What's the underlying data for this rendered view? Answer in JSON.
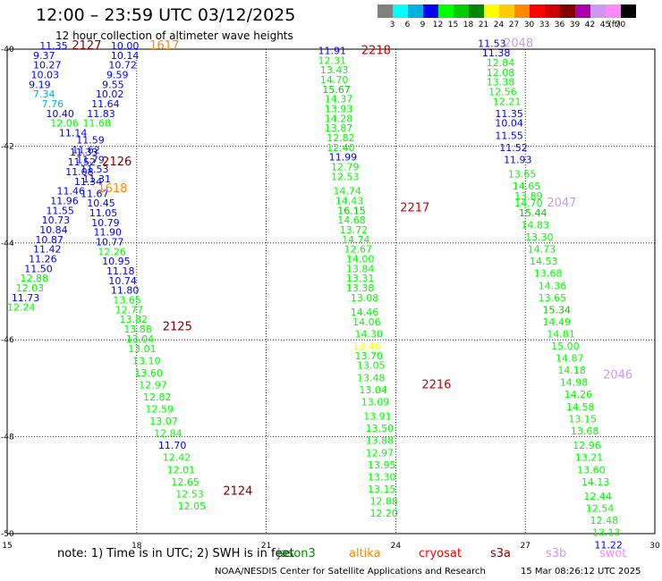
{
  "header": {
    "title": "12:00 – 23:59 UTC 03/12/2025",
    "subtitle": "12 hour collection of altimeter wave heights"
  },
  "scale": {
    "unit": "(ft)",
    "bins": [
      {
        "label": "3",
        "color": "#808080"
      },
      {
        "label": "6",
        "color": "#00ffff"
      },
      {
        "label": "9",
        "color": "#00b0e0"
      },
      {
        "label": "12",
        "color": "#0000ff"
      },
      {
        "label": "15",
        "color": "#00ff00"
      },
      {
        "label": "18",
        "color": "#00cc00"
      },
      {
        "label": "21",
        "color": "#008800"
      },
      {
        "label": "24",
        "color": "#ffff00"
      },
      {
        "label": "27",
        "color": "#ffcc00"
      },
      {
        "label": "30",
        "color": "#ff8800"
      },
      {
        "label": "33",
        "color": "#ff0000"
      },
      {
        "label": "36",
        "color": "#cc0000"
      },
      {
        "label": "39",
        "color": "#800000"
      },
      {
        "label": "42",
        "color": "#aa00aa"
      },
      {
        "label": "45",
        "color": "#cc99ee"
      },
      {
        "label": "70",
        "color": "#ff88ff"
      },
      {
        "label": "",
        "color": "#000000"
      }
    ]
  },
  "chart_data": {
    "type": "scatter",
    "title": "12:00 – 23:59 UTC 03/12/2025",
    "subtitle": "12 hour collection of altimeter wave heights",
    "xlim": [
      15,
      30
    ],
    "ylim": [
      -50,
      -40
    ],
    "xticks": [
      "15",
      "18",
      "21",
      "24",
      "27",
      "30"
    ],
    "yticks": [
      "-40",
      "-42",
      "-44",
      "-46",
      "-48",
      "-50"
    ],
    "grid": true,
    "tracks": [
      {
        "label": "2127",
        "x": 16.5,
        "y": -40.0,
        "color": "#800000"
      },
      {
        "label": "1617",
        "x": 18.3,
        "y": -40.0,
        "color": "#ff8800"
      },
      {
        "label": "2218",
        "x": 23.2,
        "y": -40.1,
        "color": "#cc0000"
      },
      {
        "label": "2048",
        "x": 26.5,
        "y": -39.95,
        "color": "#cc99ee"
      },
      {
        "label": "2126",
        "x": 17.2,
        "y": -42.4,
        "color": "#800000"
      },
      {
        "label": "1618",
        "x": 17.1,
        "y": -42.95,
        "color": "#ff8800"
      },
      {
        "label": "2217",
        "x": 24.1,
        "y": -43.35,
        "color": "#cc0000"
      },
      {
        "label": "2047",
        "x": 27.5,
        "y": -43.25,
        "color": "#cc99ee"
      },
      {
        "label": "2125",
        "x": 18.6,
        "y": -45.8,
        "color": "#800000"
      },
      {
        "label": "2216",
        "x": 24.6,
        "y": -47.0,
        "color": "#cc0000"
      },
      {
        "label": "2046",
        "x": 28.8,
        "y": -46.8,
        "color": "#cc99ee"
      },
      {
        "label": "2124",
        "x": 20.0,
        "y": -49.2,
        "color": "#800000"
      }
    ],
    "observations": [
      {
        "x": 15.75,
        "y": -40.0,
        "v": "11.35",
        "c": "#0000ff"
      },
      {
        "x": 15.6,
        "y": -40.2,
        "v": "9.37",
        "c": "#0000ff"
      },
      {
        "x": 15.6,
        "y": -40.4,
        "v": "10.27",
        "c": "#0000ff"
      },
      {
        "x": 15.55,
        "y": -40.6,
        "v": "10.03",
        "c": "#0000ff"
      },
      {
        "x": 15.5,
        "y": -40.8,
        "v": "9.19",
        "c": "#0000ff"
      },
      {
        "x": 15.6,
        "y": -41.0,
        "v": "7.34",
        "c": "#00b0e0"
      },
      {
        "x": 15.8,
        "y": -41.2,
        "v": "7.76",
        "c": "#00b0e0"
      },
      {
        "x": 15.9,
        "y": -41.4,
        "v": "10.40",
        "c": "#0000ff"
      },
      {
        "x": 16.0,
        "y": -41.6,
        "v": "12.06",
        "c": "#00ff00"
      },
      {
        "x": 16.2,
        "y": -41.8,
        "v": "11.14",
        "c": "#0000ff"
      },
      {
        "x": 16.45,
        "y": -42.2,
        "v": "11.33",
        "c": "#0000ff"
      },
      {
        "x": 16.4,
        "y": -42.4,
        "v": "11.52",
        "c": "#0000ff"
      },
      {
        "x": 16.35,
        "y": -42.6,
        "v": "11.08",
        "c": "#0000ff"
      },
      {
        "x": 16.55,
        "y": -42.8,
        "v": "11.34",
        "c": "#0000ff"
      },
      {
        "x": 16.15,
        "y": -43.0,
        "v": "11.46",
        "c": "#0000ff"
      },
      {
        "x": 16.0,
        "y": -43.2,
        "v": "11.96",
        "c": "#0000ff"
      },
      {
        "x": 15.9,
        "y": -43.4,
        "v": "11.55",
        "c": "#0000ff"
      },
      {
        "x": 15.8,
        "y": -43.6,
        "v": "10.73",
        "c": "#0000ff"
      },
      {
        "x": 15.75,
        "y": -43.8,
        "v": "10.84",
        "c": "#0000ff"
      },
      {
        "x": 15.65,
        "y": -44.0,
        "v": "10.87",
        "c": "#0000ff"
      },
      {
        "x": 15.6,
        "y": -44.2,
        "v": "11.42",
        "c": "#0000ff"
      },
      {
        "x": 15.5,
        "y": -44.4,
        "v": "11.26",
        "c": "#0000ff"
      },
      {
        "x": 15.4,
        "y": -44.6,
        "v": "11.50",
        "c": "#0000ff"
      },
      {
        "x": 15.3,
        "y": -44.8,
        "v": "12.88",
        "c": "#00ff00"
      },
      {
        "x": 15.2,
        "y": -45.0,
        "v": "12.03",
        "c": "#00ff00"
      },
      {
        "x": 15.1,
        "y": -45.2,
        "v": "11.73",
        "c": "#0000ff"
      },
      {
        "x": 15.0,
        "y": -45.4,
        "v": "12.24",
        "c": "#00ff00"
      },
      {
        "x": 17.4,
        "y": -40.0,
        "v": "10.00",
        "c": "#0000ff"
      },
      {
        "x": 17.4,
        "y": -40.2,
        "v": "10.14",
        "c": "#0000ff"
      },
      {
        "x": 17.35,
        "y": -40.4,
        "v": "10.72",
        "c": "#0000ff"
      },
      {
        "x": 17.3,
        "y": -40.6,
        "v": "9.59",
        "c": "#0000ff"
      },
      {
        "x": 17.2,
        "y": -40.8,
        "v": "9.55",
        "c": "#0000ff"
      },
      {
        "x": 17.05,
        "y": -41.0,
        "v": "10.02",
        "c": "#0000ff"
      },
      {
        "x": 16.95,
        "y": -41.2,
        "v": "11.64",
        "c": "#0000ff"
      },
      {
        "x": 16.85,
        "y": -41.4,
        "v": "11.83",
        "c": "#0000ff"
      },
      {
        "x": 16.75,
        "y": -41.6,
        "v": "11.68",
        "c": "#00ff00"
      },
      {
        "x": 16.6,
        "y": -41.95,
        "v": "11.59",
        "c": "#0000ff"
      },
      {
        "x": 16.5,
        "y": -42.15,
        "v": "11.62",
        "c": "#0000ff"
      },
      {
        "x": 16.6,
        "y": -42.35,
        "v": "11.79",
        "c": "#0000ff"
      },
      {
        "x": 16.7,
        "y": -42.55,
        "v": "11.53",
        "c": "#0000ff"
      },
      {
        "x": 16.75,
        "y": -42.75,
        "v": "11.31",
        "c": "#0000ff"
      },
      {
        "x": 16.7,
        "y": -43.05,
        "v": "11.67",
        "c": "#0000ff"
      },
      {
        "x": 16.85,
        "y": -43.25,
        "v": "10.45",
        "c": "#0000ff"
      },
      {
        "x": 16.9,
        "y": -43.45,
        "v": "11.05",
        "c": "#0000ff"
      },
      {
        "x": 16.95,
        "y": -43.65,
        "v": "10.79",
        "c": "#0000ff"
      },
      {
        "x": 17.0,
        "y": -43.85,
        "v": "11.90",
        "c": "#0000ff"
      },
      {
        "x": 17.05,
        "y": -44.05,
        "v": "10.77",
        "c": "#0000ff"
      },
      {
        "x": 17.1,
        "y": -44.25,
        "v": "12.26",
        "c": "#00ff00"
      },
      {
        "x": 17.2,
        "y": -44.45,
        "v": "10.95",
        "c": "#0000ff"
      },
      {
        "x": 17.3,
        "y": -44.65,
        "v": "11.18",
        "c": "#0000ff"
      },
      {
        "x": 17.35,
        "y": -44.85,
        "v": "10.74",
        "c": "#0000ff"
      },
      {
        "x": 17.4,
        "y": -45.05,
        "v": "11.80",
        "c": "#0000ff"
      },
      {
        "x": 17.45,
        "y": -45.25,
        "v": "13.65",
        "c": "#00ff00"
      },
      {
        "x": 17.5,
        "y": -45.45,
        "v": "12.77",
        "c": "#00ff00"
      },
      {
        "x": 17.6,
        "y": -45.65,
        "v": "13.82",
        "c": "#00ff00"
      },
      {
        "x": 17.7,
        "y": -45.85,
        "v": "13.88",
        "c": "#00ff00"
      },
      {
        "x": 17.75,
        "y": -46.05,
        "v": "13.04",
        "c": "#00ff00"
      },
      {
        "x": 17.8,
        "y": -46.25,
        "v": "13.01",
        "c": "#00ff00"
      },
      {
        "x": 17.9,
        "y": -46.5,
        "v": "13.10",
        "c": "#00ff00"
      },
      {
        "x": 17.95,
        "y": -46.75,
        "v": "13.60",
        "c": "#00ff00"
      },
      {
        "x": 18.05,
        "y": -47.0,
        "v": "12.97",
        "c": "#00ff00"
      },
      {
        "x": 18.15,
        "y": -47.25,
        "v": "12.82",
        "c": "#00ff00"
      },
      {
        "x": 18.2,
        "y": -47.5,
        "v": "12.59",
        "c": "#00ff00"
      },
      {
        "x": 18.3,
        "y": -47.75,
        "v": "13.07",
        "c": "#00ff00"
      },
      {
        "x": 18.4,
        "y": -48.0,
        "v": "12.84",
        "c": "#00ff00"
      },
      {
        "x": 18.5,
        "y": -48.25,
        "v": "11.70",
        "c": "#0000ff"
      },
      {
        "x": 18.6,
        "y": -48.5,
        "v": "12.42",
        "c": "#00ff00"
      },
      {
        "x": 18.7,
        "y": -48.75,
        "v": "12.01",
        "c": "#00ff00"
      },
      {
        "x": 18.8,
        "y": -49.0,
        "v": "12.65",
        "c": "#00ff00"
      },
      {
        "x": 18.9,
        "y": -49.25,
        "v": "12.53",
        "c": "#00ff00"
      },
      {
        "x": 18.95,
        "y": -49.5,
        "v": "12.05",
        "c": "#00ff00"
      },
      {
        "x": 22.2,
        "y": -40.1,
        "v": "11.91",
        "c": "#0000ff"
      },
      {
        "x": 22.2,
        "y": -40.3,
        "v": "12.31",
        "c": "#00ff00"
      },
      {
        "x": 22.25,
        "y": -40.5,
        "v": "13.43",
        "c": "#00ff00"
      },
      {
        "x": 22.25,
        "y": -40.7,
        "v": "14.70",
        "c": "#00ff00"
      },
      {
        "x": 22.3,
        "y": -40.9,
        "v": "15.67",
        "c": "#00cc00"
      },
      {
        "x": 22.35,
        "y": -41.1,
        "v": "14.37",
        "c": "#00ff00"
      },
      {
        "x": 22.35,
        "y": -41.3,
        "v": "13.93",
        "c": "#00ff00"
      },
      {
        "x": 22.35,
        "y": -41.5,
        "v": "14.28",
        "c": "#00ff00"
      },
      {
        "x": 22.35,
        "y": -41.7,
        "v": "13.87",
        "c": "#00ff00"
      },
      {
        "x": 22.4,
        "y": -41.9,
        "v": "12.82",
        "c": "#00ff00"
      },
      {
        "x": 22.4,
        "y": -42.1,
        "v": "12.40",
        "c": "#00ff00"
      },
      {
        "x": 22.45,
        "y": -42.3,
        "v": "11.99",
        "c": "#0000ff"
      },
      {
        "x": 22.5,
        "y": -42.5,
        "v": "12.79",
        "c": "#00ff00"
      },
      {
        "x": 22.5,
        "y": -42.7,
        "v": "12.53",
        "c": "#00ff00"
      },
      {
        "x": 22.55,
        "y": -43.0,
        "v": "14.74",
        "c": "#00ff00"
      },
      {
        "x": 22.6,
        "y": -43.2,
        "v": "14.43",
        "c": "#00ff00"
      },
      {
        "x": 22.65,
        "y": -43.4,
        "v": "16.15",
        "c": "#00cc00"
      },
      {
        "x": 22.65,
        "y": -43.6,
        "v": "14.68",
        "c": "#00ff00"
      },
      {
        "x": 22.7,
        "y": -43.8,
        "v": "13.72",
        "c": "#00ff00"
      },
      {
        "x": 22.75,
        "y": -44.0,
        "v": "14.74",
        "c": "#00ff00"
      },
      {
        "x": 22.8,
        "y": -44.2,
        "v": "12.67",
        "c": "#00ff00"
      },
      {
        "x": 22.85,
        "y": -44.4,
        "v": "14.00",
        "c": "#00ff00"
      },
      {
        "x": 22.85,
        "y": -44.6,
        "v": "13.84",
        "c": "#00ff00"
      },
      {
        "x": 22.85,
        "y": -44.8,
        "v": "13.31",
        "c": "#00ff00"
      },
      {
        "x": 22.85,
        "y": -45.0,
        "v": "13.38",
        "c": "#00ff00"
      },
      {
        "x": 22.95,
        "y": -45.2,
        "v": "13.08",
        "c": "#00ff00"
      },
      {
        "x": 22.95,
        "y": -45.5,
        "v": "14.46",
        "c": "#00ff00"
      },
      {
        "x": 23.0,
        "y": -45.7,
        "v": "14.06",
        "c": "#00ff00"
      },
      {
        "x": 23.05,
        "y": -45.95,
        "v": "14.30",
        "c": "#00ff00"
      },
      {
        "x": 23.0,
        "y": -46.2,
        "v": "13.46",
        "c": "#ffff00"
      },
      {
        "x": 23.05,
        "y": -46.4,
        "v": "13.70",
        "c": "#00ff00"
      },
      {
        "x": 23.1,
        "y": -46.6,
        "v": "13.05",
        "c": "#00ff00"
      },
      {
        "x": 23.1,
        "y": -46.85,
        "v": "13.48",
        "c": "#00ff00"
      },
      {
        "x": 23.15,
        "y": -47.1,
        "v": "13.04",
        "c": "#00ff00"
      },
      {
        "x": 23.2,
        "y": -47.35,
        "v": "13.09",
        "c": "#00ff00"
      },
      {
        "x": 23.25,
        "y": -47.65,
        "v": "13.91",
        "c": "#00ff00"
      },
      {
        "x": 23.3,
        "y": -47.9,
        "v": "13.50",
        "c": "#00ff00"
      },
      {
        "x": 23.3,
        "y": -48.15,
        "v": "13.88",
        "c": "#00ff00"
      },
      {
        "x": 23.3,
        "y": -48.4,
        "v": "12.97",
        "c": "#00ff00"
      },
      {
        "x": 23.35,
        "y": -48.65,
        "v": "13.95",
        "c": "#00ff00"
      },
      {
        "x": 23.35,
        "y": -48.9,
        "v": "13.30",
        "c": "#00ff00"
      },
      {
        "x": 23.35,
        "y": -49.15,
        "v": "13.15",
        "c": "#00ff00"
      },
      {
        "x": 23.4,
        "y": -49.4,
        "v": "12.88",
        "c": "#00ff00"
      },
      {
        "x": 23.4,
        "y": -49.65,
        "v": "12.20",
        "c": "#00ff00"
      },
      {
        "x": 25.9,
        "y": -39.95,
        "v": "11.53",
        "c": "#0000ff"
      },
      {
        "x": 26.0,
        "y": -40.15,
        "v": "11.38",
        "c": "#0000ff"
      },
      {
        "x": 26.1,
        "y": -40.35,
        "v": "12.84",
        "c": "#00ff00"
      },
      {
        "x": 26.1,
        "y": -40.55,
        "v": "12.08",
        "c": "#00ff00"
      },
      {
        "x": 26.1,
        "y": -40.75,
        "v": "13.38",
        "c": "#00ff00"
      },
      {
        "x": 26.15,
        "y": -40.95,
        "v": "12.56",
        "c": "#00ff00"
      },
      {
        "x": 26.25,
        "y": -41.15,
        "v": "12.21",
        "c": "#00ff00"
      },
      {
        "x": 26.3,
        "y": -41.4,
        "v": "11.35",
        "c": "#0000ff"
      },
      {
        "x": 26.3,
        "y": -41.6,
        "v": "10.04",
        "c": "#0000ff"
      },
      {
        "x": 26.3,
        "y": -41.85,
        "v": "11.55",
        "c": "#0000ff"
      },
      {
        "x": 26.4,
        "y": -42.1,
        "v": "11.52",
        "c": "#0000ff"
      },
      {
        "x": 26.5,
        "y": -42.35,
        "v": "11.93",
        "c": "#0000ff"
      },
      {
        "x": 26.6,
        "y": -42.65,
        "v": "13.65",
        "c": "#00ff00"
      },
      {
        "x": 26.7,
        "y": -42.9,
        "v": "14.65",
        "c": "#00ff00"
      },
      {
        "x": 26.75,
        "y": -43.1,
        "v": "13.89",
        "c": "#00ff00"
      },
      {
        "x": 26.75,
        "y": -43.25,
        "v": "14.70",
        "c": "#00ff00"
      },
      {
        "x": 26.85,
        "y": -43.45,
        "v": "15.44",
        "c": "#00cc00"
      },
      {
        "x": 26.9,
        "y": -43.7,
        "v": "14.83",
        "c": "#00ff00"
      },
      {
        "x": 27.0,
        "y": -43.95,
        "v": "13.30",
        "c": "#00ff00"
      },
      {
        "x": 27.05,
        "y": -44.2,
        "v": "14.73",
        "c": "#00ff00"
      },
      {
        "x": 27.1,
        "y": -44.45,
        "v": "14.53",
        "c": "#00ff00"
      },
      {
        "x": 27.2,
        "y": -44.7,
        "v": "13.68",
        "c": "#00ff00"
      },
      {
        "x": 27.3,
        "y": -44.95,
        "v": "14.36",
        "c": "#00ff00"
      },
      {
        "x": 27.3,
        "y": -45.2,
        "v": "13.65",
        "c": "#00ff00"
      },
      {
        "x": 27.4,
        "y": -45.45,
        "v": "15.34",
        "c": "#00cc00"
      },
      {
        "x": 27.4,
        "y": -45.7,
        "v": "14.49",
        "c": "#00ff00"
      },
      {
        "x": 27.5,
        "y": -45.95,
        "v": "14.81",
        "c": "#00ff00"
      },
      {
        "x": 27.6,
        "y": -46.2,
        "v": "15.00",
        "c": "#00ff00"
      },
      {
        "x": 27.7,
        "y": -46.45,
        "v": "14.87",
        "c": "#00ff00"
      },
      {
        "x": 27.75,
        "y": -46.7,
        "v": "14.18",
        "c": "#00ff00"
      },
      {
        "x": 27.8,
        "y": -46.95,
        "v": "14.98",
        "c": "#00ff00"
      },
      {
        "x": 27.9,
        "y": -47.2,
        "v": "14.26",
        "c": "#00ff00"
      },
      {
        "x": 27.95,
        "y": -47.45,
        "v": "14.58",
        "c": "#00ff00"
      },
      {
        "x": 28.0,
        "y": -47.7,
        "v": "13.15",
        "c": "#00ff00"
      },
      {
        "x": 28.05,
        "y": -47.95,
        "v": "13.68",
        "c": "#00ff00"
      },
      {
        "x": 28.1,
        "y": -48.25,
        "v": "12.96",
        "c": "#00ff00"
      },
      {
        "x": 28.15,
        "y": -48.5,
        "v": "13.21",
        "c": "#00ff00"
      },
      {
        "x": 28.2,
        "y": -48.75,
        "v": "13.60",
        "c": "#00ff00"
      },
      {
        "x": 28.3,
        "y": -49.0,
        "v": "14.13",
        "c": "#00ff00"
      },
      {
        "x": 28.35,
        "y": -49.3,
        "v": "12.44",
        "c": "#00ff00"
      },
      {
        "x": 28.4,
        "y": -49.55,
        "v": "12.54",
        "c": "#00ff00"
      },
      {
        "x": 28.5,
        "y": -49.8,
        "v": "12.48",
        "c": "#00ff00"
      },
      {
        "x": 28.55,
        "y": -50.05,
        "v": "13.13",
        "c": "#00ff00"
      },
      {
        "x": 28.6,
        "y": -50.3,
        "v": "11.22",
        "c": "#0000ff"
      }
    ]
  },
  "footer": {
    "note": "note: 1) Time is in UTC; 2) SWH is in feet",
    "satellites": [
      {
        "name": "jason3",
        "color": "#008800"
      },
      {
        "name": "altika",
        "color": "#ff8800"
      },
      {
        "name": "cryosat",
        "color": "#ff0000"
      },
      {
        "name": "s3a",
        "color": "#800000"
      },
      {
        "name": "s3b",
        "color": "#cc99ee"
      },
      {
        "name": "swot",
        "color": "#ff88ff"
      }
    ],
    "credit": "NOAA/NESDIS Center for Satellite Applications and Research",
    "timestamp": "15 Mar 08:26:12 UTC 2025"
  }
}
